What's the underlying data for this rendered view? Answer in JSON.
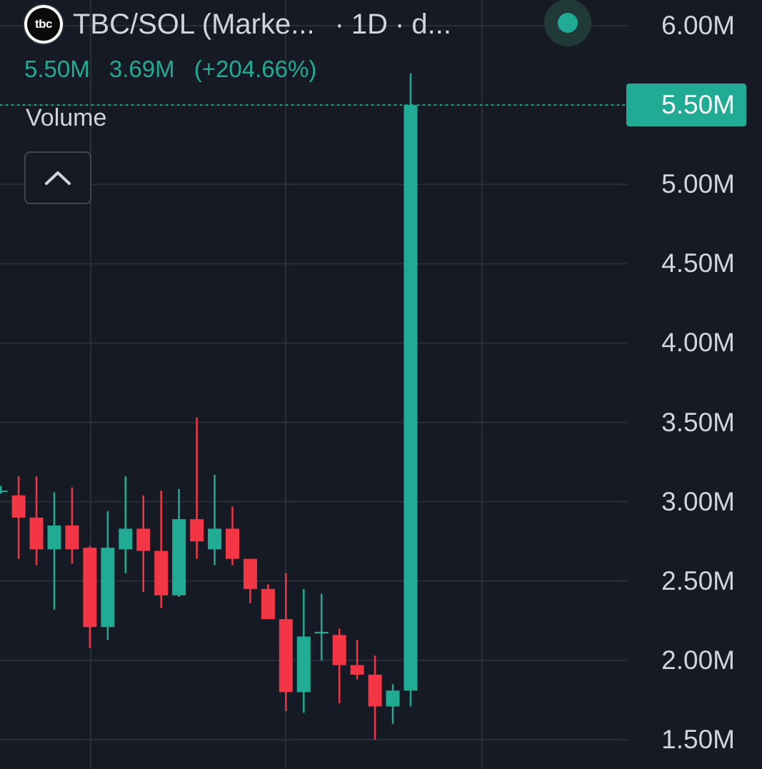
{
  "header": {
    "symbol": "TBC/SOL (Marke...",
    "separator": "·",
    "interval": "1D",
    "source": "d...",
    "logo_text": "tbc",
    "status_color": "#22ab94"
  },
  "legend_values": {
    "last": "5.50M",
    "change": "3.69M",
    "change_pct": "(+204.66%)"
  },
  "indicator": {
    "label": "Volume"
  },
  "current_price_label": "5.50M",
  "colors": {
    "background": "#161a25",
    "up": "#22ab94",
    "down": "#f23645",
    "grid": "#2a2e39",
    "text": "#d1d4dc"
  },
  "chart_data": {
    "type": "candlestick",
    "title": "TBC/SOL (Marke... · 1D · d...",
    "ylim": [
      1.5,
      6.0
    ],
    "y_unit": "M",
    "y_ticks": [
      "6.00M",
      "5.50M",
      "5.00M",
      "4.50M",
      "4.00M",
      "3.50M",
      "3.00M",
      "2.50M",
      "2.00M",
      "1.50M"
    ],
    "grid": true,
    "last_price": 5.5,
    "candles": [
      {
        "open": 3.07,
        "high": 3.1,
        "low": 3.05,
        "close": 3.07
      },
      {
        "open": 3.04,
        "high": 3.16,
        "low": 2.64,
        "close": 2.9
      },
      {
        "open": 2.9,
        "high": 3.16,
        "low": 2.6,
        "close": 2.7
      },
      {
        "open": 2.7,
        "high": 3.06,
        "low": 2.32,
        "close": 2.85
      },
      {
        "open": 2.85,
        "high": 3.09,
        "low": 2.61,
        "close": 2.7
      },
      {
        "open": 2.71,
        "high": 2.72,
        "low": 2.08,
        "close": 2.21
      },
      {
        "open": 2.21,
        "high": 2.94,
        "low": 2.13,
        "close": 2.71
      },
      {
        "open": 2.7,
        "high": 3.16,
        "low": 2.55,
        "close": 2.83
      },
      {
        "open": 2.83,
        "high": 3.04,
        "low": 2.43,
        "close": 2.69
      },
      {
        "open": 2.69,
        "high": 3.07,
        "low": 2.33,
        "close": 2.41
      },
      {
        "open": 2.41,
        "high": 3.08,
        "low": 2.4,
        "close": 2.89
      },
      {
        "open": 2.89,
        "high": 3.53,
        "low": 2.64,
        "close": 2.75
      },
      {
        "open": 2.7,
        "high": 3.17,
        "low": 2.6,
        "close": 2.83
      },
      {
        "open": 2.83,
        "high": 2.97,
        "low": 2.6,
        "close": 2.64
      },
      {
        "open": 2.64,
        "high": 2.64,
        "low": 2.36,
        "close": 2.45
      },
      {
        "open": 2.45,
        "high": 2.48,
        "low": 2.26,
        "close": 2.26
      },
      {
        "open": 2.26,
        "high": 2.55,
        "low": 1.68,
        "close": 1.8
      },
      {
        "open": 1.8,
        "high": 2.45,
        "low": 1.67,
        "close": 2.15
      },
      {
        "open": 2.17,
        "high": 2.42,
        "low": 2.0,
        "close": 2.18
      },
      {
        "open": 2.16,
        "high": 2.2,
        "low": 1.73,
        "close": 1.97
      },
      {
        "open": 1.97,
        "high": 2.13,
        "low": 1.88,
        "close": 1.91
      },
      {
        "open": 1.91,
        "high": 2.03,
        "low": 1.5,
        "close": 1.71
      },
      {
        "open": 1.71,
        "high": 1.85,
        "low": 1.6,
        "close": 1.81
      },
      {
        "open": 1.81,
        "high": 5.7,
        "low": 1.71,
        "close": 5.5
      }
    ]
  }
}
